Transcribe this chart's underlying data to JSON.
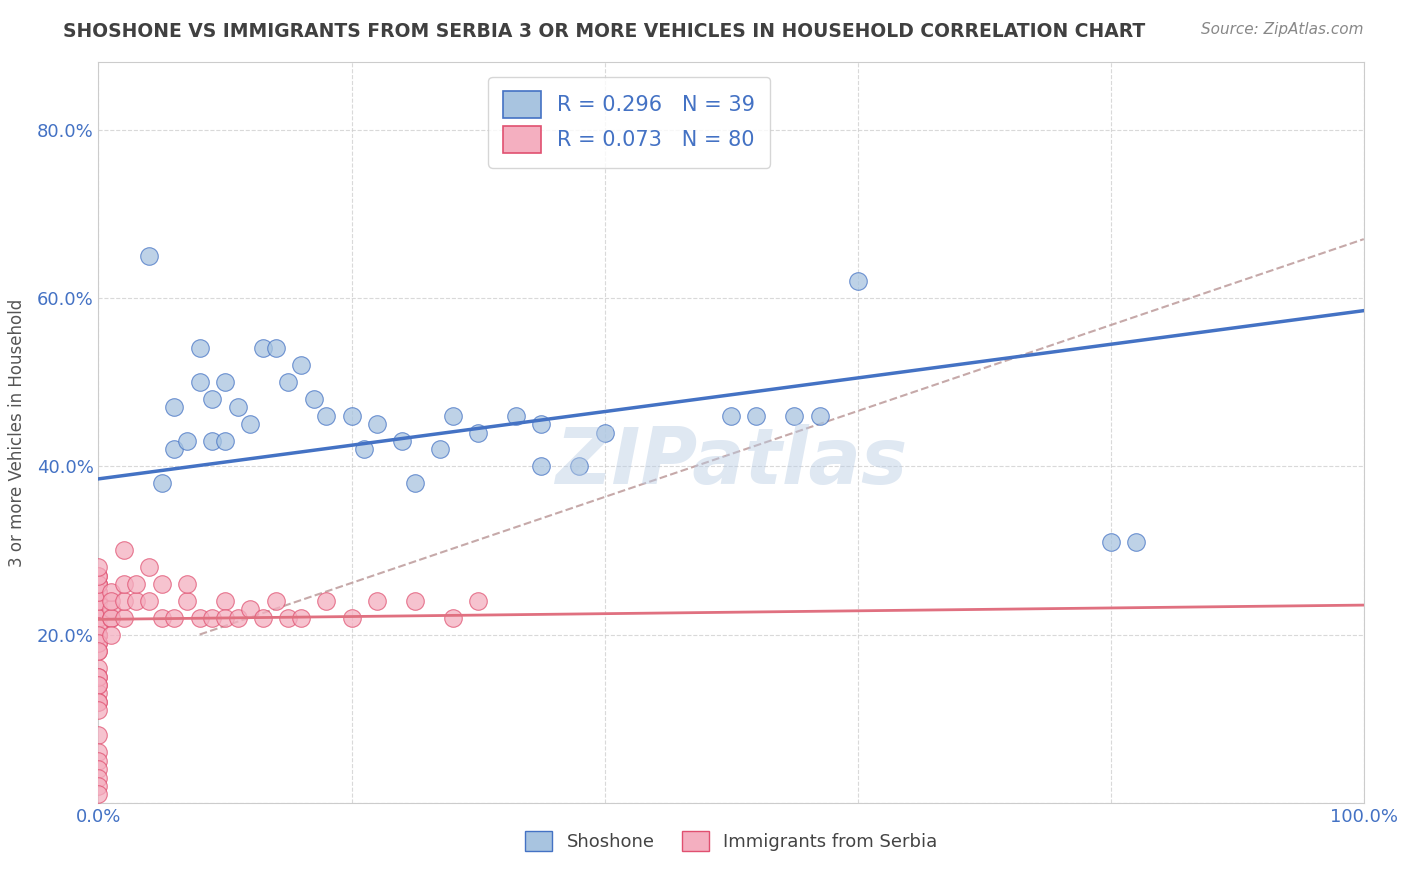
{
  "title": "SHOSHONE VS IMMIGRANTS FROM SERBIA 3 OR MORE VEHICLES IN HOUSEHOLD CORRELATION CHART",
  "source_text": "Source: ZipAtlas.com",
  "ylabel": "3 or more Vehicles in Household",
  "r_shoshone": 0.296,
  "n_shoshone": 39,
  "r_serbia": 0.073,
  "n_serbia": 80,
  "shoshone_fill": "#a8c4e0",
  "shoshone_edge": "#4472c4",
  "serbia_fill": "#f4afc0",
  "serbia_edge": "#e05070",
  "shoshone_line_color": "#4472c4",
  "serbia_line_color": "#e07080",
  "dashed_line_color": "#c0a0a0",
  "watermark": "ZIPatlas",
  "xlim": [
    0.0,
    1.0
  ],
  "ylim": [
    0.0,
    0.88
  ],
  "background_color": "#ffffff",
  "grid_color": "#d0d0d0",
  "title_color": "#404040",
  "tick_label_color": "#4472c4",
  "shoshone_x": [
    0.04,
    0.05,
    0.06,
    0.06,
    0.07,
    0.08,
    0.08,
    0.09,
    0.09,
    0.1,
    0.1,
    0.11,
    0.12,
    0.13,
    0.14,
    0.15,
    0.16,
    0.17,
    0.18,
    0.2,
    0.21,
    0.22,
    0.24,
    0.25,
    0.27,
    0.28,
    0.3,
    0.33,
    0.35,
    0.5,
    0.52,
    0.55,
    0.57,
    0.6,
    0.8,
    0.82,
    0.35,
    0.38,
    0.4
  ],
  "shoshone_y": [
    0.65,
    0.38,
    0.42,
    0.47,
    0.43,
    0.5,
    0.54,
    0.43,
    0.48,
    0.43,
    0.5,
    0.47,
    0.45,
    0.54,
    0.54,
    0.5,
    0.52,
    0.48,
    0.46,
    0.46,
    0.42,
    0.45,
    0.43,
    0.38,
    0.42,
    0.46,
    0.44,
    0.46,
    0.45,
    0.46,
    0.46,
    0.46,
    0.46,
    0.62,
    0.31,
    0.31,
    0.4,
    0.4,
    0.44
  ],
  "serbia_x": [
    0.0,
    0.0,
    0.0,
    0.0,
    0.0,
    0.0,
    0.0,
    0.0,
    0.0,
    0.0,
    0.0,
    0.0,
    0.0,
    0.0,
    0.0,
    0.0,
    0.0,
    0.0,
    0.0,
    0.0,
    0.0,
    0.0,
    0.0,
    0.0,
    0.0,
    0.0,
    0.0,
    0.0,
    0.0,
    0.0,
    0.0,
    0.0,
    0.0,
    0.0,
    0.0,
    0.0,
    0.0,
    0.0,
    0.0,
    0.0,
    0.0,
    0.0,
    0.0,
    0.0,
    0.0,
    0.01,
    0.01,
    0.01,
    0.01,
    0.01,
    0.01,
    0.02,
    0.02,
    0.02,
    0.02,
    0.03,
    0.03,
    0.04,
    0.04,
    0.05,
    0.05,
    0.06,
    0.07,
    0.07,
    0.08,
    0.09,
    0.1,
    0.1,
    0.11,
    0.12,
    0.13,
    0.14,
    0.15,
    0.16,
    0.18,
    0.2,
    0.22,
    0.25,
    0.28,
    0.3
  ],
  "serbia_y": [
    0.22,
    0.24,
    0.26,
    0.22,
    0.2,
    0.23,
    0.21,
    0.24,
    0.2,
    0.19,
    0.18,
    0.16,
    0.15,
    0.14,
    0.13,
    0.12,
    0.22,
    0.23,
    0.25,
    0.26,
    0.27,
    0.22,
    0.2,
    0.08,
    0.06,
    0.05,
    0.04,
    0.03,
    0.02,
    0.01,
    0.23,
    0.22,
    0.21,
    0.2,
    0.19,
    0.18,
    0.15,
    0.14,
    0.12,
    0.11,
    0.24,
    0.25,
    0.26,
    0.27,
    0.28,
    0.22,
    0.23,
    0.25,
    0.22,
    0.2,
    0.24,
    0.22,
    0.24,
    0.26,
    0.3,
    0.24,
    0.26,
    0.24,
    0.28,
    0.22,
    0.26,
    0.22,
    0.24,
    0.26,
    0.22,
    0.22,
    0.24,
    0.22,
    0.22,
    0.23,
    0.22,
    0.24,
    0.22,
    0.22,
    0.24,
    0.22,
    0.24,
    0.24,
    0.22,
    0.24
  ],
  "shoshone_line_x0": 0.0,
  "shoshone_line_y0": 0.385,
  "shoshone_line_x1": 1.0,
  "shoshone_line_y1": 0.585,
  "serbia_line_x0": 0.0,
  "serbia_line_y0": 0.218,
  "serbia_line_x1": 1.0,
  "serbia_line_y1": 0.235,
  "dashed_line_x0": 0.08,
  "dashed_line_y0": 0.2,
  "dashed_line_x1": 1.0,
  "dashed_line_y1": 0.67
}
